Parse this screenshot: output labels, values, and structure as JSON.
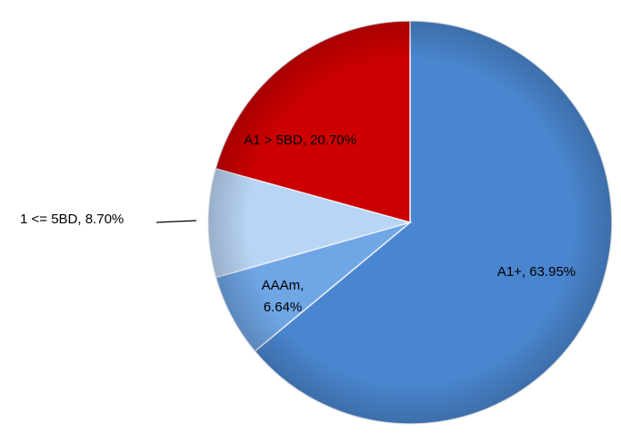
{
  "chart_data": {
    "type": "pie",
    "values": [
      63.95,
      6.64,
      8.7,
      20.7
    ],
    "value_labels": [
      "A1+, 63.95%",
      "AAAm, 6.64%",
      "1 <= 5BD, 8.70%",
      "A1 > 5BD, 20.70%"
    ],
    "colors": [
      "#4a86cf",
      "#6fa6e6",
      "#b9d5f5",
      "#cc0000"
    ]
  }
}
